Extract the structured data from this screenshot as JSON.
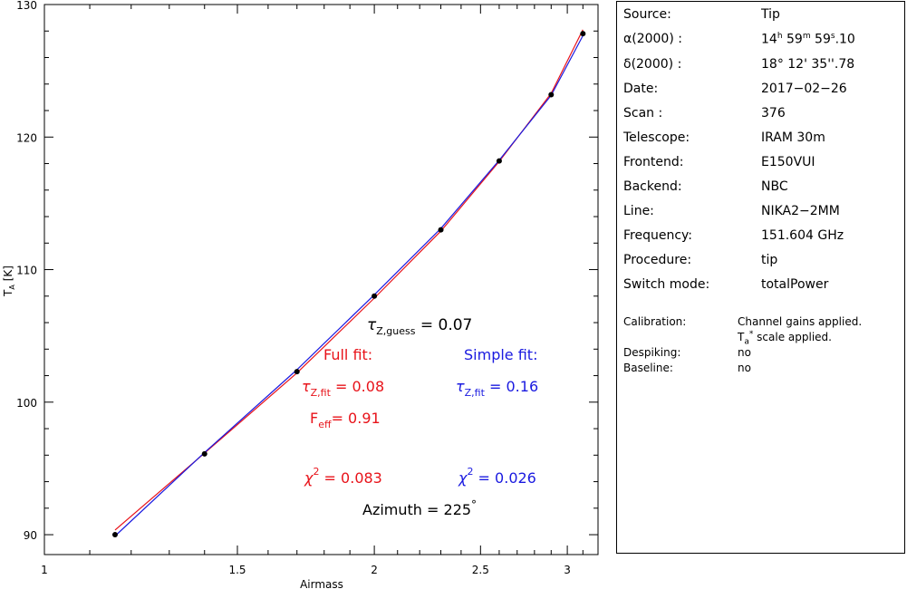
{
  "chart_data": {
    "type": "scatter",
    "xlabel": "Airmass",
    "ylabel": "T",
    "ylabel_sub": "A",
    "ylabel_unit": " [K]",
    "x_scale": "log",
    "xlim": [
      1.0,
      3.2
    ],
    "ylim": [
      88.5,
      130
    ],
    "x_ticks": [
      1,
      1.5,
      2,
      2.5,
      3
    ],
    "x_tick_labels": [
      "1",
      "1.5",
      "2",
      "2.5",
      "3"
    ],
    "y_ticks": [
      90,
      100,
      110,
      120,
      130
    ],
    "y_tick_labels": [
      "90",
      "100",
      "110",
      "120",
      "130"
    ],
    "grid": false,
    "points": {
      "x": [
        1.16,
        1.4,
        1.7,
        2.0,
        2.3,
        2.6,
        2.9,
        3.1
      ],
      "y": [
        90.0,
        96.1,
        102.3,
        108.0,
        113.0,
        118.2,
        123.2,
        127.8
      ]
    },
    "series": [
      {
        "name": "Full fit",
        "color": "#e8131a",
        "x": [
          1.16,
          1.4,
          1.7,
          2.0,
          2.3,
          2.6,
          2.9,
          3.1
        ],
        "y": [
          90.35,
          96.15,
          102.2,
          107.85,
          112.9,
          118.15,
          123.3,
          128.1
        ]
      },
      {
        "name": "Simple fit",
        "color": "#1a1ae0",
        "x": [
          1.16,
          1.4,
          1.7,
          2.0,
          2.3,
          2.6,
          2.9,
          3.1
        ],
        "y": [
          89.9,
          96.2,
          102.45,
          108.1,
          113.1,
          118.25,
          123.15,
          127.65
        ]
      }
    ],
    "annotations": {
      "tau_guess_sym": "τ",
      "tau_guess_sub": "Z,guess",
      "tau_guess_val": " = 0.07",
      "full_fit_title": "Full fit:",
      "simple_fit_title": "Simple fit:",
      "full_tau_sym": "τ",
      "full_tau_sub": "Z,fit",
      "full_tau_val": " = 0.08",
      "simple_tau_sym": "τ",
      "simple_tau_sub": "Z,fit",
      "simple_tau_val": " = 0.16",
      "feff_sym": "F",
      "feff_sub": "eff",
      "feff_val": "= 0.91",
      "full_chi_sym": "χ",
      "full_chi_sup": "2",
      "full_chi_val": " = 0.083",
      "simple_chi_sym": "χ",
      "simple_chi_sup": "2",
      "simple_chi_val": " = 0.026",
      "azimuth_label": "Azimuth = 225",
      "azimuth_unit": "°"
    },
    "colors": {
      "full": "#e8131a",
      "simple": "#1a1ae0",
      "axes": "#000000"
    }
  },
  "info": {
    "source_label": "Source:",
    "source_value": "Tip",
    "ra_label": "α(2000) :",
    "ra_h": "14",
    "ra_h_unit": "h",
    "ra_m": " 59",
    "ra_m_unit": "m",
    "ra_s": " 59",
    "ra_s_unit": "s",
    "ra_frac": ".10",
    "dec_label": "δ(2000) :",
    "dec_value": "18° 12' 35''.78",
    "date_label": "Date:",
    "date_value": "2017−02−26",
    "scan_label": "Scan :",
    "scan_value": "376",
    "telescope_label": "Telescope:",
    "telescope_value": "IRAM 30m",
    "frontend_label": "Frontend:",
    "frontend_value": "E150VUI",
    "backend_label": "Backend:",
    "backend_value": "NBC",
    "line_label": "Line:",
    "line_value": "NIKA2−2MM",
    "frequency_label": "Frequency:",
    "frequency_value": "151.604 GHz",
    "procedure_label": "Procedure:",
    "procedure_value": "tip",
    "switch_label": "Switch mode:",
    "switch_value": "totalPower",
    "calibration_label": "Calibration:",
    "calibration_value1": "Channel gains applied.",
    "calibration_value2_sym": "T",
    "calibration_value2_sub": "a",
    "calibration_value2_sup": "*",
    "calibration_value2_rest": " scale applied.",
    "despiking_label": "Despiking:",
    "despiking_value": "no",
    "baseline_label": "Baseline:",
    "baseline_value": "no"
  }
}
